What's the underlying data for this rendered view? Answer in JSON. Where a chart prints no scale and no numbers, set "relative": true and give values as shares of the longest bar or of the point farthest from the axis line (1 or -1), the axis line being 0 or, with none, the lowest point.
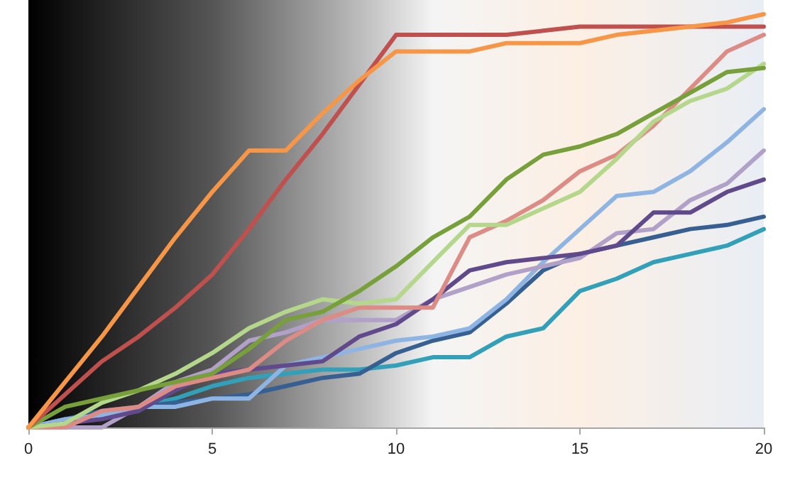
{
  "chart_data": {
    "type": "line",
    "relative": true,
    "x": [
      0,
      1,
      2,
      3,
      4,
      5,
      6,
      7,
      8,
      9,
      10,
      11,
      12,
      13,
      14,
      15,
      16,
      17,
      18,
      19,
      20
    ],
    "xlim": [
      0,
      20
    ],
    "xticks": [
      0,
      5,
      10,
      15,
      20
    ],
    "grid": false,
    "marker": "none",
    "line_style": "solid",
    "series": [
      {
        "color": "#f79646",
        "values": [
          0,
          0.11,
          0.22,
          0.34,
          0.46,
          0.57,
          0.67,
          0.67,
          0.76,
          0.84,
          0.91,
          0.91,
          0.91,
          0.93,
          0.93,
          0.93,
          0.95,
          0.96,
          0.97,
          0.98,
          1
        ]
      },
      {
        "color": "#c0504d",
        "values": [
          0,
          0.08,
          0.16,
          0.22,
          0.29,
          0.37,
          0.48,
          0.6,
          0.71,
          0.83,
          0.95,
          0.95,
          0.95,
          0.95,
          0.96,
          0.97,
          0.97,
          0.97,
          0.97,
          0.97,
          0.97
        ]
      },
      {
        "color": "#77a03a",
        "values": [
          0,
          0.05,
          0.07,
          0.09,
          0.11,
          0.13,
          0.19,
          0.26,
          0.28,
          0.33,
          0.39,
          0.46,
          0.51,
          0.6,
          0.66,
          0.68,
          0.71,
          0.76,
          0.81,
          0.86,
          0.87
        ]
      },
      {
        "color": "#b4d78c",
        "values": [
          0,
          0.01,
          0.06,
          0.09,
          0.13,
          0.18,
          0.24,
          0.28,
          0.31,
          0.3,
          0.31,
          0.4,
          0.49,
          0.49,
          0.53,
          0.57,
          0.65,
          0.74,
          0.79,
          0.82,
          0.88
        ]
      },
      {
        "color": "#dd8b85",
        "values": [
          0,
          0,
          0.04,
          0.05,
          0.1,
          0.12,
          0.14,
          0.21,
          0.26,
          0.29,
          0.29,
          0.29,
          0.46,
          0.5,
          0.55,
          0.62,
          0.66,
          0.73,
          0.82,
          0.91,
          0.95
        ]
      },
      {
        "color": "#604a8b",
        "values": [
          0,
          0.01,
          0.02,
          0.04,
          0.09,
          0.13,
          0.14,
          0.15,
          0.16,
          0.22,
          0.25,
          0.31,
          0.38,
          0.4,
          0.41,
          0.42,
          0.44,
          0.52,
          0.52,
          0.57,
          0.6
        ]
      },
      {
        "color": "#b1a0c7",
        "values": [
          0,
          0,
          0,
          0.05,
          0.11,
          0.14,
          0.21,
          0.23,
          0.26,
          0.26,
          0.26,
          0.31,
          0.34,
          0.37,
          0.39,
          0.41,
          0.47,
          0.48,
          0.55,
          0.59,
          0.67
        ]
      },
      {
        "color": "#8eb4e3",
        "values": [
          0,
          0.02,
          0.03,
          0.05,
          0.05,
          0.07,
          0.07,
          0.15,
          0.17,
          0.19,
          0.21,
          0.22,
          0.24,
          0.31,
          0.4,
          0.48,
          0.56,
          0.57,
          0.62,
          0.69,
          0.77
        ]
      },
      {
        "color": "#376092",
        "values": [
          0,
          0.02,
          0.04,
          0.05,
          0.06,
          0.07,
          0.08,
          0.1,
          0.12,
          0.13,
          0.18,
          0.21,
          0.23,
          0.3,
          0.38,
          0.42,
          0.44,
          0.46,
          0.48,
          0.49,
          0.51
        ]
      },
      {
        "color": "#31a0b8",
        "values": [
          0,
          0.02,
          0.03,
          0.05,
          0.07,
          0.1,
          0.12,
          0.13,
          0.14,
          0.14,
          0.15,
          0.17,
          0.17,
          0.22,
          0.24,
          0.33,
          0.36,
          0.4,
          0.42,
          0.44,
          0.48
        ]
      }
    ]
  }
}
